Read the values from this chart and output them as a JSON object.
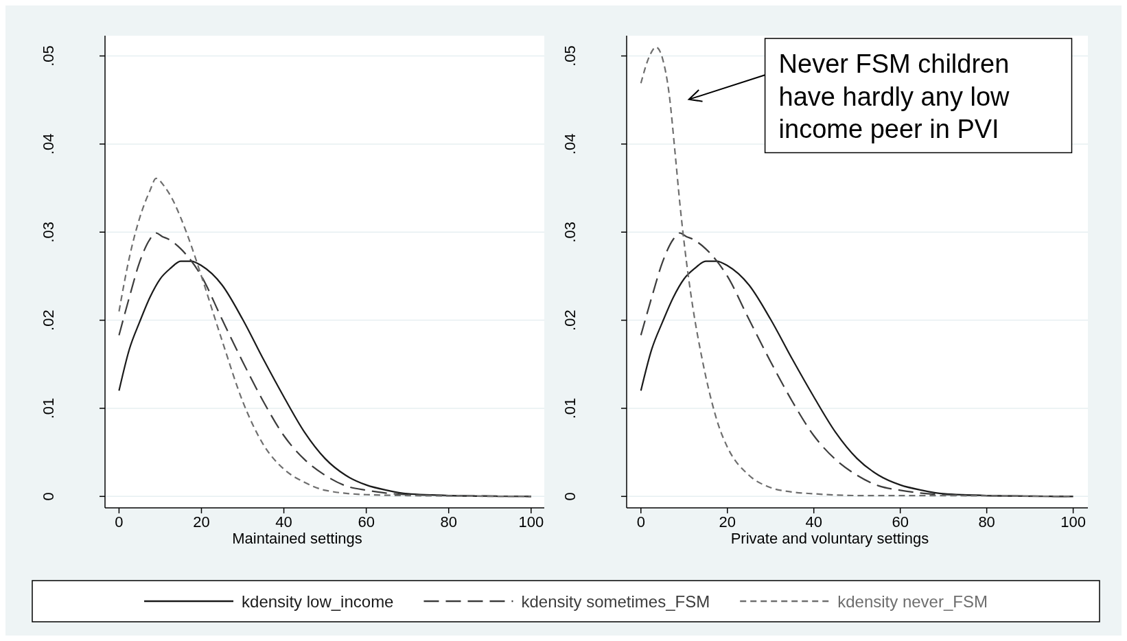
{
  "chart_data": [
    {
      "type": "line",
      "xlabel": "Maintained settings",
      "xlim": [
        -3.4,
        103.2
      ],
      "ylim": [
        -0.0013,
        0.0523
      ],
      "xticks": [
        0,
        20,
        40,
        60,
        80,
        100
      ],
      "yticks": [
        {
          "value": 0,
          "label": "0"
        },
        {
          "value": 0.01,
          "label": ".01"
        },
        {
          "value": 0.02,
          "label": ".02"
        },
        {
          "value": 0.03,
          "label": ".03"
        },
        {
          "value": 0.04,
          "label": ".04"
        },
        {
          "value": 0.05,
          "label": ".05"
        }
      ],
      "grid": "y",
      "legend": "bottom",
      "series": [
        {
          "name": "kdensity low_income",
          "color": "#1a1a1a",
          "line_style": "solid",
          "x": [
            0,
            2.5,
            5,
            7.5,
            10,
            12.5,
            15,
            17.5,
            20,
            25,
            30,
            35,
            40,
            45,
            50,
            55,
            60,
            65,
            70,
            80,
            100
          ],
          "values": [
            0.012,
            0.0167,
            0.0198,
            0.0226,
            0.0247,
            0.0259,
            0.0267,
            0.0267,
            0.0262,
            0.024,
            0.0201,
            0.0156,
            0.0113,
            0.0073,
            0.0043,
            0.0024,
            0.0013,
            0.0007,
            0.0003,
            0.0001,
            0
          ]
        },
        {
          "name": "kdensity sometimes_FSM",
          "color": "#3c3c3c",
          "line_style": "dashed",
          "x": [
            0,
            2.5,
            5,
            7.5,
            9,
            10.5,
            12,
            15,
            20,
            25,
            30,
            35,
            40,
            45,
            50,
            55,
            60,
            70,
            80,
            100
          ],
          "values": [
            0.0183,
            0.0226,
            0.0266,
            0.0292,
            0.0299,
            0.0295,
            0.0292,
            0.0281,
            0.025,
            0.0201,
            0.0153,
            0.0108,
            0.0069,
            0.0042,
            0.0024,
            0.0012,
            0.0007,
            0.0002,
            0.0001,
            0
          ]
        },
        {
          "name": "kdensity never_FSM",
          "color": "#6e6e6e",
          "line_style": "dashed",
          "x": [
            0,
            2.5,
            5,
            7.5,
            9,
            11,
            13,
            15,
            17.5,
            20,
            25,
            30,
            35,
            40,
            45,
            50,
            60,
            70,
            100
          ],
          "values": [
            0.021,
            0.0271,
            0.0316,
            0.0347,
            0.0361,
            0.0352,
            0.0337,
            0.0316,
            0.0285,
            0.025,
            0.0177,
            0.0108,
            0.0059,
            0.0031,
            0.0016,
            0.0007,
            0.0002,
            0.0001,
            0
          ]
        }
      ]
    },
    {
      "type": "line",
      "xlabel": "Private and voluntary settings",
      "xlim": [
        -3.3,
        103.4
      ],
      "ylim": [
        -0.0013,
        0.0523
      ],
      "xticks": [
        0,
        20,
        40,
        60,
        80,
        100
      ],
      "yticks": [
        {
          "value": 0,
          "label": "0"
        },
        {
          "value": 0.01,
          "label": ".01"
        },
        {
          "value": 0.02,
          "label": ".02"
        },
        {
          "value": 0.03,
          "label": ".03"
        },
        {
          "value": 0.04,
          "label": ".04"
        },
        {
          "value": 0.05,
          "label": ".05"
        }
      ],
      "grid": "y",
      "annotations": [
        "Never FSM children have hardly any low income peer in PVI"
      ],
      "series": [
        {
          "color": "#1a1a1a",
          "line_style": "solid",
          "x": [
            0,
            2.5,
            5,
            7.5,
            10,
            12.5,
            15,
            17.5,
            20,
            25,
            30,
            35,
            40,
            45,
            50,
            55,
            60,
            65,
            70,
            80,
            100
          ],
          "values": [
            0.012,
            0.0167,
            0.0198,
            0.0226,
            0.0247,
            0.0259,
            0.0267,
            0.0267,
            0.0262,
            0.024,
            0.0201,
            0.0156,
            0.0113,
            0.0073,
            0.0043,
            0.0024,
            0.0013,
            0.0007,
            0.0003,
            0.0001,
            0
          ]
        },
        {
          "color": "#3c3c3c",
          "line_style": "dashed",
          "x": [
            0,
            2.5,
            5,
            7.5,
            9,
            10.5,
            12,
            15,
            20,
            25,
            30,
            35,
            40,
            45,
            50,
            55,
            60,
            70,
            80,
            100
          ],
          "values": [
            0.0183,
            0.0226,
            0.0266,
            0.0292,
            0.0299,
            0.0295,
            0.0292,
            0.0281,
            0.025,
            0.0201,
            0.0153,
            0.0108,
            0.0069,
            0.0042,
            0.0024,
            0.0012,
            0.0007,
            0.0002,
            0.0001,
            0
          ]
        },
        {
          "color": "#6e6e6e",
          "line_style": "dashed",
          "x": [
            0,
            2,
            3.5,
            5,
            6.5,
            8,
            9,
            10,
            12,
            14,
            16,
            18,
            20,
            25,
            30,
            35,
            40,
            50,
            60,
            100
          ],
          "values": [
            0.0469,
            0.05,
            0.051,
            0.0497,
            0.0458,
            0.0385,
            0.0333,
            0.0288,
            0.0215,
            0.016,
            0.0115,
            0.008,
            0.0056,
            0.0024,
            0.001,
            0.0005,
            0.0003,
            0.0001,
            0.0001,
            0
          ]
        }
      ]
    }
  ]
}
